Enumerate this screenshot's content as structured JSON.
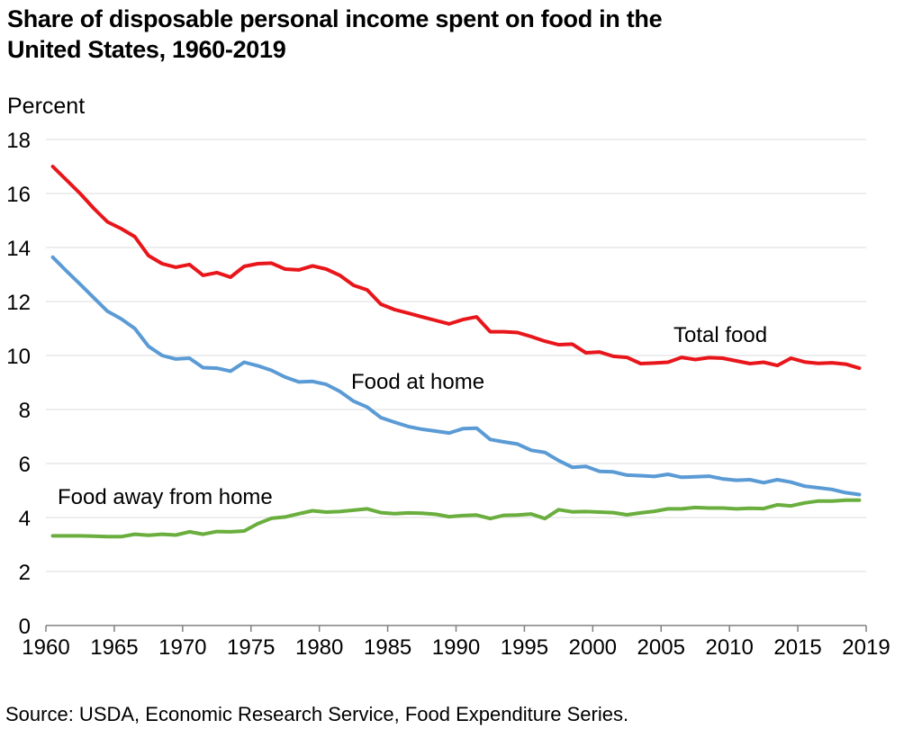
{
  "chart_data": {
    "type": "line",
    "title": "Share of disposable personal income spent on food in the United States, 1960-2019",
    "title_lines": [
      "Share of disposable personal income spent on food in the",
      "United States, 1960-2019"
    ],
    "xlabel": "",
    "ylabel": "Percent",
    "ylim": [
      0,
      18
    ],
    "yticks": [
      0,
      2,
      4,
      6,
      8,
      10,
      12,
      14,
      16,
      18
    ],
    "xlim": [
      1960,
      2019
    ],
    "xticks": [
      "1960",
      "1965",
      "1970",
      "1975",
      "1980",
      "1985",
      "1990",
      "1995",
      "2000",
      "2005",
      "2010",
      "2015",
      "2019"
    ],
    "grid": true,
    "legend": "inline labels",
    "source": "Source: USDA, Economic Research Service, Food Expenditure Series.",
    "x": [
      1960,
      1961,
      1962,
      1963,
      1964,
      1965,
      1966,
      1967,
      1968,
      1969,
      1970,
      1971,
      1972,
      1973,
      1974,
      1975,
      1976,
      1977,
      1978,
      1979,
      1980,
      1981,
      1982,
      1983,
      1984,
      1985,
      1986,
      1987,
      1988,
      1989,
      1990,
      1991,
      1992,
      1993,
      1994,
      1995,
      1996,
      1997,
      1998,
      1999,
      2000,
      2001,
      2002,
      2003,
      2004,
      2005,
      2006,
      2007,
      2008,
      2009,
      2010,
      2011,
      2012,
      2013,
      2014,
      2015,
      2016,
      2017,
      2018,
      2019
    ],
    "series": [
      {
        "name": "Total food",
        "label": "Total food",
        "color": "#e8161b",
        "values": [
          17.0,
          16.5,
          16.0,
          15.45,
          14.95,
          14.7,
          14.4,
          13.7,
          13.4,
          13.27,
          13.37,
          12.97,
          13.07,
          12.9,
          13.3,
          13.4,
          13.42,
          13.2,
          13.17,
          13.32,
          13.2,
          12.97,
          12.6,
          12.43,
          11.9,
          11.7,
          11.57,
          11.43,
          11.3,
          11.17,
          11.33,
          11.43,
          10.88,
          10.88,
          10.85,
          10.7,
          10.53,
          10.4,
          10.42,
          10.1,
          10.13,
          9.97,
          9.93,
          9.7,
          9.72,
          9.75,
          9.93,
          9.85,
          9.92,
          9.9,
          9.8,
          9.7,
          9.75,
          9.63,
          9.9,
          9.76,
          9.71,
          9.73,
          9.68,
          9.53
        ]
      },
      {
        "name": "Food at home",
        "label": "Food at home",
        "color": "#5b9bd5",
        "values": [
          13.64,
          13.13,
          12.64,
          12.14,
          11.64,
          11.36,
          11.0,
          10.34,
          10.0,
          9.87,
          9.9,
          9.55,
          9.53,
          9.42,
          9.75,
          9.62,
          9.45,
          9.2,
          9.02,
          9.04,
          8.93,
          8.67,
          8.31,
          8.09,
          7.7,
          7.53,
          7.37,
          7.27,
          7.2,
          7.13,
          7.29,
          7.31,
          6.89,
          6.8,
          6.72,
          6.49,
          6.41,
          6.11,
          5.86,
          5.89,
          5.71,
          5.69,
          5.57,
          5.55,
          5.52,
          5.6,
          5.49,
          5.51,
          5.53,
          5.43,
          5.38,
          5.4,
          5.29,
          5.4,
          5.31,
          5.16,
          5.1,
          5.04,
          4.92,
          4.85
        ]
      },
      {
        "name": "Food away from home",
        "label": "Food away from home",
        "color": "#6aae3e",
        "values": [
          3.32,
          3.32,
          3.32,
          3.31,
          3.29,
          3.29,
          3.38,
          3.34,
          3.38,
          3.35,
          3.47,
          3.38,
          3.48,
          3.47,
          3.5,
          3.77,
          3.97,
          4.02,
          4.14,
          4.25,
          4.2,
          4.22,
          4.27,
          4.32,
          4.18,
          4.14,
          4.17,
          4.16,
          4.12,
          4.03,
          4.07,
          4.09,
          3.96,
          4.08,
          4.09,
          4.13,
          3.96,
          4.29,
          4.21,
          4.22,
          4.2,
          4.18,
          4.1,
          4.17,
          4.23,
          4.32,
          4.32,
          4.37,
          4.35,
          4.35,
          4.32,
          4.34,
          4.33,
          4.47,
          4.43,
          4.54,
          4.61,
          4.61,
          4.64,
          4.64
        ]
      }
    ]
  }
}
